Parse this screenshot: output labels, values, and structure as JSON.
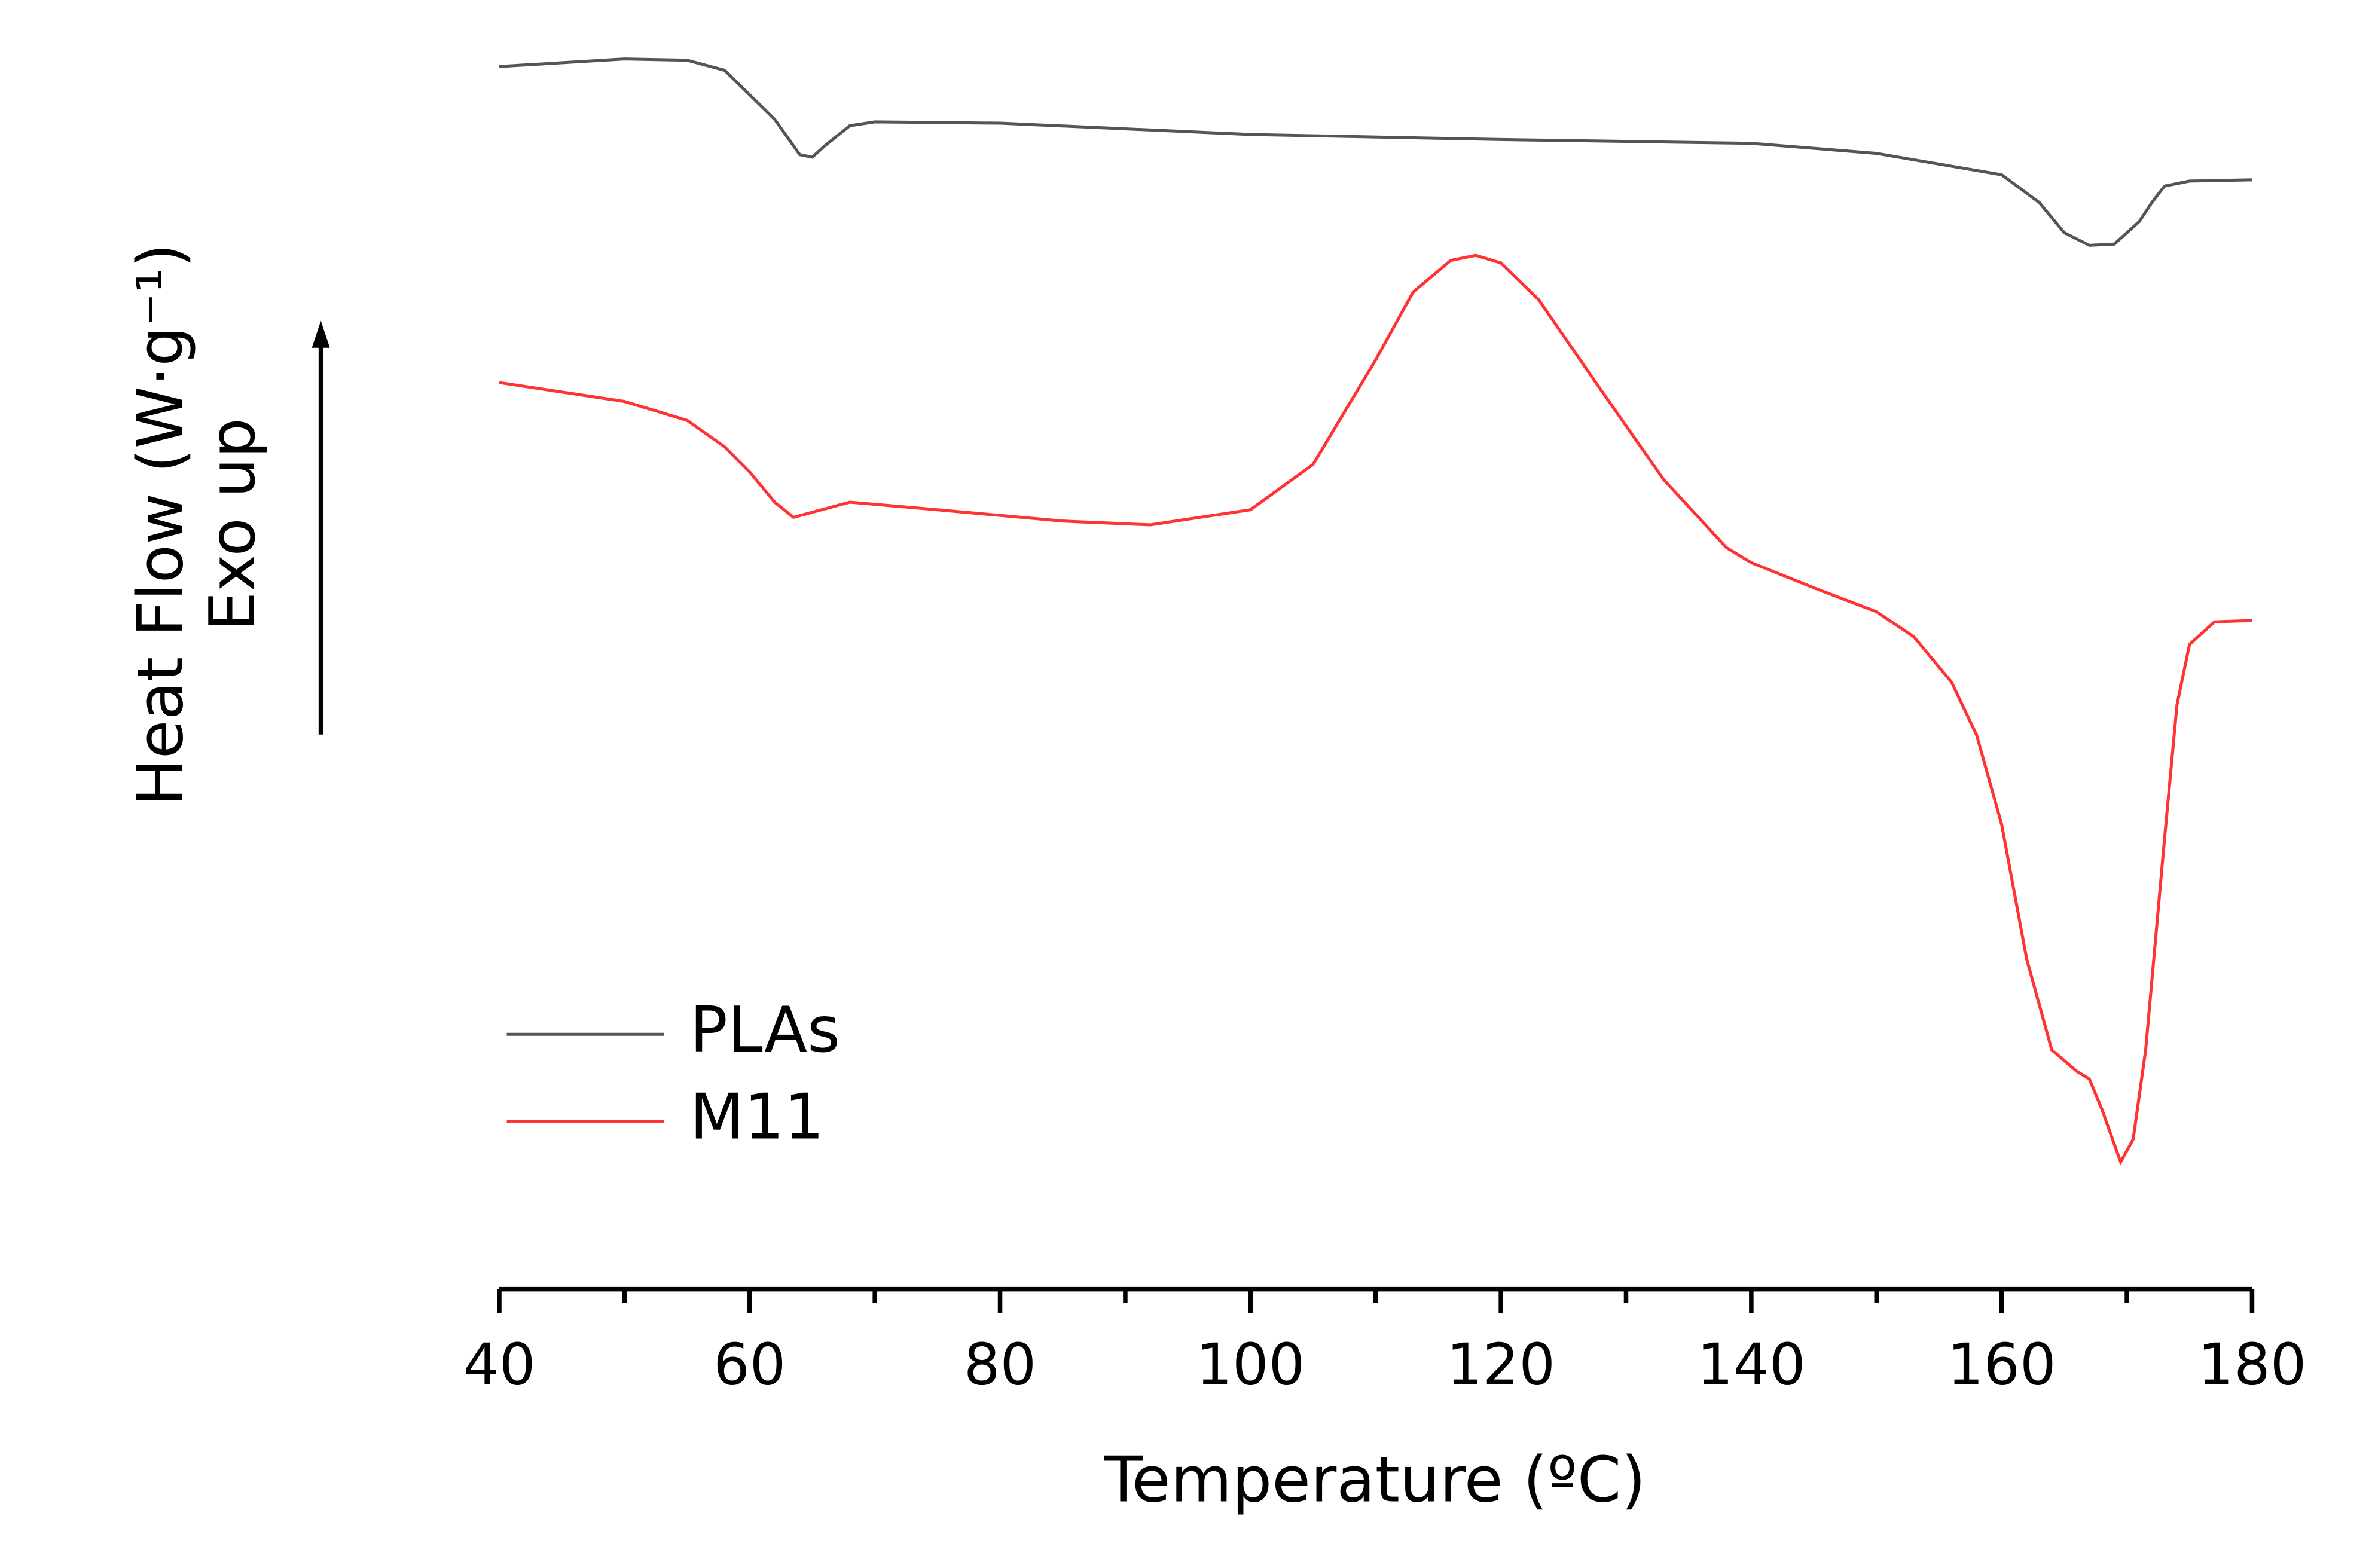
{
  "chart_data": {
    "type": "line",
    "x_label": "Temperature (ºC)",
    "y_label": "Heat Flow (W·g⁻¹)",
    "y_label_2": "Exo up",
    "xlim": [
      40,
      180
    ],
    "xticks": [
      40,
      60,
      80,
      100,
      120,
      140,
      160,
      180
    ],
    "xminorticks": [
      50,
      70,
      90,
      110,
      130,
      150,
      170
    ],
    "ylim": [
      0,
      100
    ],
    "legend": "lower left",
    "series": [
      {
        "name": "PLAs",
        "color": "#555555",
        "x": [
          40,
          50,
          55,
          58,
          62,
          64,
          65,
          66,
          68,
          70,
          80,
          100,
          120,
          140,
          150,
          160,
          163,
          165,
          167,
          169,
          171,
          172,
          173,
          175,
          180
        ],
        "values": [
          97.1,
          97.7,
          97.6,
          96.8,
          92.9,
          90.1,
          89.9,
          90.8,
          92.4,
          92.7,
          92.6,
          91.7,
          91.3,
          91.0,
          90.2,
          88.5,
          86.3,
          83.9,
          82.9,
          83.0,
          84.8,
          86.3,
          87.6,
          88.0,
          88.1
        ]
      },
      {
        "name": "M11",
        "color": "#ff3333",
        "x": [
          40,
          50,
          55,
          58,
          60,
          62,
          63.5,
          65,
          68,
          75,
          85,
          92,
          100,
          105,
          110,
          113,
          116,
          118,
          120,
          123,
          128,
          133,
          138,
          140,
          145,
          150,
          153,
          156,
          158,
          160,
          162,
          164,
          166,
          167,
          168,
          169.5,
          170.5,
          171.5,
          173,
          174,
          175,
          177,
          180
        ],
        "values": [
          72.0,
          70.5,
          69.0,
          66.9,
          64.9,
          62.5,
          61.3,
          61.7,
          62.5,
          61.9,
          61.0,
          60.7,
          61.9,
          65.5,
          73.8,
          79.2,
          81.7,
          82.1,
          81.5,
          78.6,
          71.4,
          64.3,
          58.9,
          57.7,
          55.7,
          53.8,
          51.8,
          48.2,
          44.0,
          36.9,
          26.2,
          19.0,
          17.3,
          16.7,
          14.3,
          10.1,
          11.9,
          19.0,
          35.7,
          46.4,
          51.2,
          53.0,
          53.1
        ]
      }
    ]
  }
}
